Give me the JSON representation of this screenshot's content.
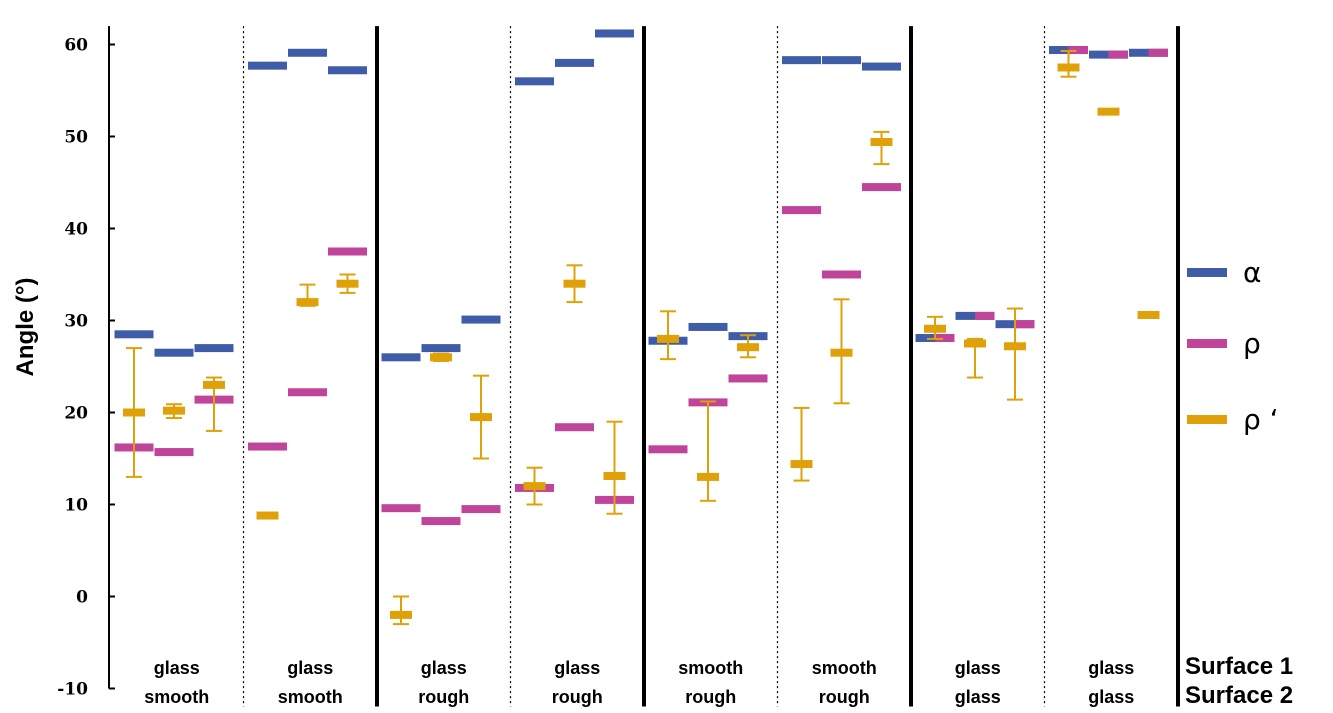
{
  "chart_data": {
    "type": "scatter",
    "ylabel": "Angle (°)",
    "ylim": [
      -10,
      62
    ],
    "yticks": [
      -10,
      0,
      10,
      20,
      30,
      40,
      50,
      60
    ],
    "grid": false,
    "legend_position": "right",
    "series": [
      {
        "name": "α",
        "color": "#3f5ca8"
      },
      {
        "name": "ρ",
        "color": "#c0449a"
      },
      {
        "name": "ρ ‘",
        "color": "#e0a108"
      }
    ],
    "groups": [
      {
        "surface1": "glass",
        "surface2": "smooth",
        "alpha": [
          28.5,
          26.5,
          27.0
        ],
        "rho": [
          16.2,
          15.7,
          21.4
        ],
        "rho_prime": [
          {
            "v": 20.0,
            "lo": 13.0,
            "hi": 27.0
          },
          {
            "v": 20.2,
            "lo": 19.4,
            "hi": 20.9
          },
          {
            "v": 23.0,
            "lo": 18.0,
            "hi": 23.8
          }
        ]
      },
      {
        "surface1": "glass",
        "surface2": "smooth",
        "alpha": [
          57.7,
          59.1,
          57.2
        ],
        "rho": [
          16.3,
          22.2,
          37.5
        ],
        "rho_prime": [
          {
            "v": 8.8
          },
          {
            "v": 32.0,
            "lo": 31.6,
            "hi": 33.9
          },
          {
            "v": 34.0,
            "lo": 33.0,
            "hi": 35.0
          }
        ]
      },
      {
        "surface1": "glass",
        "surface2": "rough",
        "alpha": [
          26.0,
          27.0,
          30.1
        ],
        "rho": [
          9.6,
          8.2,
          9.5
        ],
        "rho_prime": [
          {
            "v": -2.0,
            "lo": -3.0,
            "hi": 0.0
          },
          {
            "v": 26.0,
            "lo": 25.6,
            "hi": 26.4
          },
          {
            "v": 19.5,
            "lo": 15.0,
            "hi": 24.0
          }
        ]
      },
      {
        "surface1": "glass",
        "surface2": "rough",
        "alpha": [
          56.0,
          58.0,
          61.2
        ],
        "rho": [
          11.8,
          18.4,
          10.5
        ],
        "rho_prime": [
          {
            "v": 12.0,
            "lo": 10.0,
            "hi": 14.0
          },
          {
            "v": 34.0,
            "lo": 32.0,
            "hi": 36.0
          },
          {
            "v": 13.1,
            "lo": 9.0,
            "hi": 19.0
          }
        ]
      },
      {
        "surface1": "smooth",
        "surface2": "rough",
        "alpha": [
          27.8,
          29.3,
          28.3
        ],
        "rho": [
          16.0,
          21.1,
          23.7
        ],
        "rho_prime": [
          {
            "v": 28.0,
            "lo": 25.8,
            "hi": 31.0
          },
          {
            "v": 13.0,
            "lo": 10.4,
            "hi": 21.2
          },
          {
            "v": 27.1,
            "lo": 26.0,
            "hi": 28.4
          }
        ]
      },
      {
        "surface1": "smooth",
        "surface2": "rough",
        "alpha": [
          58.3,
          58.3,
          57.6
        ],
        "rho": [
          42.0,
          35.0,
          44.5
        ],
        "rho_prime": [
          {
            "v": 14.4,
            "lo": 12.6,
            "hi": 20.5
          },
          {
            "v": 26.5,
            "lo": 21.0,
            "hi": 32.3
          },
          {
            "v": 49.4,
            "lo": 47.0,
            "hi": 50.5
          }
        ]
      },
      {
        "surface1": "glass",
        "surface2": "glass",
        "alpha": [
          28.1,
          30.5,
          29.6
        ],
        "rho": [
          28.1,
          30.5,
          29.6
        ],
        "rho_prime": [
          {
            "v": 29.1,
            "lo": 28.0,
            "hi": 30.4
          },
          {
            "v": 27.5,
            "lo": 23.8,
            "hi": 28.0
          },
          {
            "v": 27.2,
            "lo": 21.4,
            "hi": 31.3
          }
        ]
      },
      {
        "surface1": "glass",
        "surface2": "glass",
        "alpha": [
          59.4,
          58.9,
          59.1
        ],
        "rho": [
          59.4,
          58.9,
          59.1
        ],
        "rho_prime": [
          {
            "v": 57.5,
            "lo": 56.5,
            "hi": 59.3
          },
          {
            "v": 52.7
          },
          {
            "v": 30.6
          }
        ]
      }
    ],
    "axis_labels": {
      "surface1": "Surface 1",
      "surface2": "Surface 2"
    }
  }
}
